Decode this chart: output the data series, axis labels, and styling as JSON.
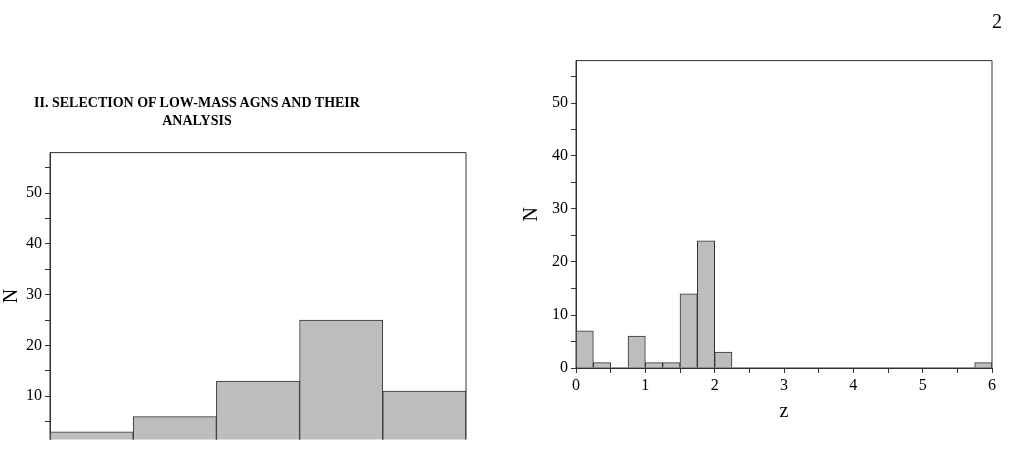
{
  "chart_data": [
    {
      "type": "bar",
      "title": "II.  SELECTION OF LOW-MASS AGNS AND THEIR ANALYSIS",
      "ylabel": "N",
      "categories": [
        null,
        null,
        null,
        null,
        null
      ],
      "values": [
        3,
        6,
        13,
        25,
        11
      ],
      "color": "#bdbdbd",
      "ylim": [
        1.5,
        58
      ],
      "yticks": [
        {
          "value": 5,
          "label": null
        },
        10,
        {
          "value": 15,
          "label": null
        },
        20,
        {
          "value": 25,
          "label": null
        },
        30,
        {
          "value": 35,
          "label": null
        },
        40,
        {
          "value": 45,
          "label": null
        },
        50,
        {
          "value": 55,
          "label": null
        }
      ],
      "grid": false
    },
    {
      "type": "histogram",
      "xlabel": "z",
      "ylabel": "N",
      "annotations": [
        "2"
      ],
      "bins": [
        0,
        0.25,
        0.5,
        0.75,
        1,
        1.25,
        1.5,
        1.75,
        2,
        2.25,
        2.5,
        2.75,
        3,
        3.25,
        3.5,
        3.75,
        4,
        4.25,
        4.5,
        4.75,
        5,
        5.25,
        5.5,
        5.75,
        6
      ],
      "values": [
        7,
        1,
        0,
        6,
        1,
        1,
        14,
        24,
        3,
        0,
        0,
        0,
        0,
        0,
        0,
        0,
        0,
        0,
        0,
        0,
        0,
        0,
        0,
        1
      ],
      "color": "#bdbdbd",
      "xlim": [
        0,
        6
      ],
      "xticks": [
        0,
        {
          "value": 0.5,
          "label": null
        },
        1,
        {
          "value": 1.5,
          "label": null
        },
        2,
        {
          "value": 2.5,
          "label": null
        },
        3,
        {
          "value": 3.5,
          "label": null
        },
        4,
        {
          "value": 4.5,
          "label": null
        },
        5,
        {
          "value": 5.5,
          "label": null
        },
        6
      ],
      "ylim": [
        0,
        58
      ],
      "yticks": [
        0,
        {
          "value": 5,
          "label": null
        },
        10,
        {
          "value": 15,
          "label": null
        },
        20,
        {
          "value": 25,
          "label": null
        },
        30,
        {
          "value": 35,
          "label": null
        },
        40,
        {
          "value": 45,
          "label": null
        },
        50,
        {
          "value": 55,
          "label": null
        }
      ],
      "grid": false
    }
  ]
}
